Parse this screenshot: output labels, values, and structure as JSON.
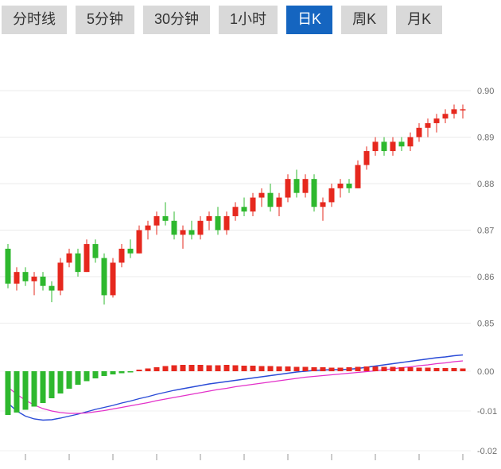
{
  "toolbar": {
    "tabs": [
      {
        "label": "分时线",
        "active": false
      },
      {
        "label": "5分钟",
        "active": false
      },
      {
        "label": "30分钟",
        "active": false
      },
      {
        "label": "1小时",
        "active": false
      },
      {
        "label": "日K",
        "active": true
      },
      {
        "label": "周K",
        "active": false
      },
      {
        "label": "月K",
        "active": false
      }
    ]
  },
  "ui_colors": {
    "tab-bg": "#d9d9d9",
    "tab-text": "#333333",
    "tab-active-bg": "#1565c0",
    "tab-active-text": "#ffffff"
  },
  "chart_data": {
    "type": "candlestick",
    "title": "",
    "selected_timeframe": "日K",
    "legend_position": "none",
    "grid": true,
    "y_axis_side": "right",
    "main_pane": {
      "ylim": [
        0.845,
        0.91
      ],
      "y_ticks": [
        0.9,
        0.89,
        0.88,
        0.87,
        0.86,
        0.85
      ],
      "candles_ohlc": [
        [
          0.866,
          0.867,
          0.8575,
          0.8585
        ],
        [
          0.8585,
          0.862,
          0.857,
          0.861
        ],
        [
          0.861,
          0.862,
          0.858,
          0.859
        ],
        [
          0.859,
          0.861,
          0.856,
          0.86
        ],
        [
          0.86,
          0.861,
          0.857,
          0.858
        ],
        [
          0.858,
          0.859,
          0.8545,
          0.857
        ],
        [
          0.857,
          0.864,
          0.856,
          0.863
        ],
        [
          0.863,
          0.866,
          0.862,
          0.865
        ],
        [
          0.865,
          0.866,
          0.86,
          0.861
        ],
        [
          0.861,
          0.868,
          0.861,
          0.867
        ],
        [
          0.867,
          0.868,
          0.863,
          0.864
        ],
        [
          0.864,
          0.865,
          0.854,
          0.856
        ],
        [
          0.856,
          0.864,
          0.8555,
          0.863
        ],
        [
          0.863,
          0.867,
          0.862,
          0.866
        ],
        [
          0.866,
          0.868,
          0.864,
          0.865
        ],
        [
          0.865,
          0.871,
          0.865,
          0.87
        ],
        [
          0.87,
          0.872,
          0.868,
          0.871
        ],
        [
          0.871,
          0.874,
          0.869,
          0.873
        ],
        [
          0.873,
          0.876,
          0.871,
          0.872
        ],
        [
          0.872,
          0.874,
          0.868,
          0.869
        ],
        [
          0.869,
          0.871,
          0.866,
          0.87
        ],
        [
          0.87,
          0.872,
          0.868,
          0.869
        ],
        [
          0.869,
          0.873,
          0.868,
          0.872
        ],
        [
          0.872,
          0.874,
          0.87,
          0.873
        ],
        [
          0.873,
          0.875,
          0.869,
          0.87
        ],
        [
          0.87,
          0.874,
          0.869,
          0.873
        ],
        [
          0.873,
          0.876,
          0.872,
          0.875
        ],
        [
          0.875,
          0.877,
          0.873,
          0.874
        ],
        [
          0.874,
          0.878,
          0.873,
          0.877
        ],
        [
          0.877,
          0.879,
          0.875,
          0.878
        ],
        [
          0.878,
          0.88,
          0.874,
          0.875
        ],
        [
          0.875,
          0.878,
          0.873,
          0.877
        ],
        [
          0.877,
          0.882,
          0.876,
          0.881
        ],
        [
          0.881,
          0.883,
          0.877,
          0.878
        ],
        [
          0.878,
          0.882,
          0.877,
          0.881
        ],
        [
          0.881,
          0.882,
          0.874,
          0.875
        ],
        [
          0.875,
          0.877,
          0.872,
          0.876
        ],
        [
          0.876,
          0.88,
          0.875,
          0.879
        ],
        [
          0.879,
          0.881,
          0.877,
          0.88
        ],
        [
          0.88,
          0.881,
          0.878,
          0.879
        ],
        [
          0.879,
          0.885,
          0.879,
          0.884
        ],
        [
          0.884,
          0.888,
          0.883,
          0.887
        ],
        [
          0.887,
          0.89,
          0.886,
          0.889
        ],
        [
          0.889,
          0.89,
          0.886,
          0.887
        ],
        [
          0.887,
          0.89,
          0.886,
          0.889
        ],
        [
          0.889,
          0.89,
          0.887,
          0.888
        ],
        [
          0.888,
          0.891,
          0.887,
          0.89
        ],
        [
          0.89,
          0.893,
          0.889,
          0.892
        ],
        [
          0.892,
          0.894,
          0.89,
          0.893
        ],
        [
          0.893,
          0.895,
          0.891,
          0.894
        ],
        [
          0.894,
          0.896,
          0.893,
          0.895
        ],
        [
          0.895,
          0.897,
          0.894,
          0.896
        ],
        [
          0.896,
          0.897,
          0.894,
          0.896
        ]
      ]
    },
    "macd_pane": {
      "ylim": [
        -0.022,
        0.005
      ],
      "y_ticks": [
        0.0,
        -0.01,
        -0.02
      ],
      "hist": [
        -0.011,
        -0.0104,
        -0.0097,
        -0.0089,
        -0.008,
        -0.0068,
        -0.0056,
        -0.0044,
        -0.0034,
        -0.0025,
        -0.0018,
        -0.0012,
        -0.0008,
        -0.0005,
        -0.0003,
        0.0004,
        0.0007,
        0.001,
        0.0013,
        0.0015,
        0.0016,
        0.0016,
        0.0016,
        0.0015,
        0.0015,
        0.0016,
        0.0015,
        0.0014,
        0.0014,
        0.0013,
        0.0013,
        0.0012,
        0.0012,
        0.0011,
        0.0011,
        0.001,
        0.001,
        0.0009,
        0.0009,
        0.001,
        0.0011,
        0.0012,
        0.0012,
        0.0011,
        0.0011,
        0.001,
        0.001,
        0.0009,
        0.0009,
        0.0008,
        0.0008,
        0.0008,
        0.0007
      ],
      "dif": [
        -0.008,
        -0.01,
        -0.0113,
        -0.012,
        -0.0123,
        -0.0122,
        -0.0118,
        -0.0113,
        -0.0108,
        -0.0102,
        -0.0096,
        -0.0091,
        -0.0086,
        -0.008,
        -0.0075,
        -0.0069,
        -0.0064,
        -0.0058,
        -0.0053,
        -0.0048,
        -0.0044,
        -0.004,
        -0.0036,
        -0.0032,
        -0.0029,
        -0.0026,
        -0.0023,
        -0.002,
        -0.0017,
        -0.0014,
        -0.0011,
        -0.0008,
        -0.0005,
        -0.0002,
        0.0,
        0.0002,
        0.0003,
        0.0004,
        0.0004,
        0.0005,
        0.0007,
        0.001,
        0.0013,
        0.0016,
        0.0019,
        0.0022,
        0.0025,
        0.0028,
        0.0031,
        0.0034,
        0.0036,
        0.0039,
        0.0041
      ],
      "dea": [
        -0.004,
        -0.0058,
        -0.0073,
        -0.0085,
        -0.0094,
        -0.01,
        -0.0104,
        -0.0106,
        -0.0106,
        -0.0105,
        -0.0102,
        -0.0099,
        -0.0095,
        -0.0091,
        -0.0087,
        -0.0083,
        -0.0079,
        -0.0074,
        -0.007,
        -0.0066,
        -0.0062,
        -0.0058,
        -0.0054,
        -0.005,
        -0.0046,
        -0.0043,
        -0.0039,
        -0.0036,
        -0.0033,
        -0.003,
        -0.0027,
        -0.0024,
        -0.0021,
        -0.0018,
        -0.0015,
        -0.0013,
        -0.0011,
        -0.0009,
        -0.0007,
        -0.0005,
        -0.0003,
        -0.0001,
        0.0001,
        0.0004,
        0.0006,
        0.0009,
        0.0011,
        0.0014,
        0.0016,
        0.0019,
        0.0021,
        0.0024,
        0.0026
      ]
    },
    "colors": {
      "up": "#e6281e",
      "down": "#2eb82e",
      "dif_line": "#2a4bd7",
      "dea_line": "#e331c9",
      "grid": "#ebebeb",
      "axis_text": "#6e6e6e",
      "tick": "#9a9a9a"
    }
  }
}
